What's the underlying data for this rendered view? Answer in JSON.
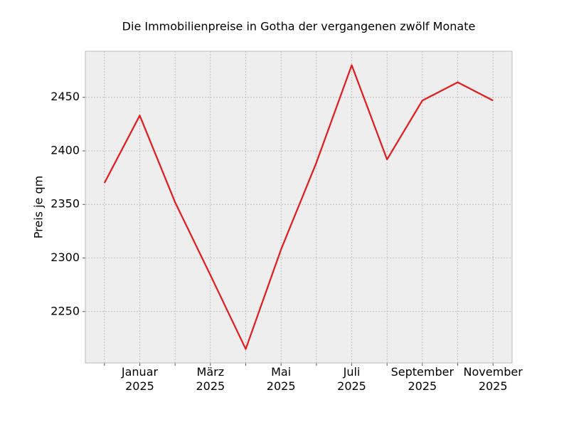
{
  "chart_data": {
    "type": "line",
    "title": "Die Immobilienpreise in Gotha der vergangenen zwölf Monate",
    "y_label": "Preis je qm",
    "categories": [
      null,
      "Januar\n2025",
      null,
      "März\n2025",
      null,
      "Mai\n2025",
      null,
      "Juli\n2025",
      null,
      "September\n2025",
      null,
      "November\n2025"
    ],
    "values": [
      2370,
      2433,
      2352,
      2284,
      2215,
      2308,
      2389,
      2480,
      2392,
      2447,
      2464,
      2447
    ],
    "color": "#e41a1c",
    "ylim": [
      2202,
      2493
    ],
    "yticks": [
      2250,
      2300,
      2350,
      2400,
      2450
    ],
    "grid": true
  }
}
